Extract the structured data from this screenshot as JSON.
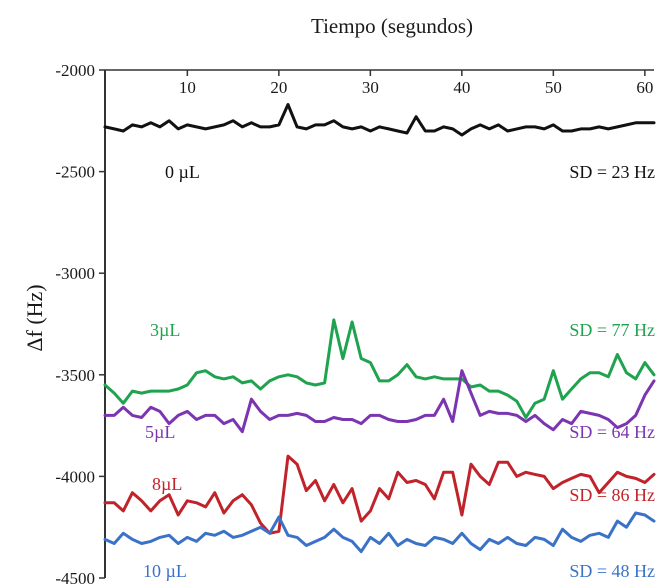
{
  "chart_data": {
    "type": "line",
    "title": "",
    "xlabel": "Tiempo (segundos)",
    "ylabel": "Δf  (Hz)",
    "xlim": [
      1,
      61
    ],
    "ylim": [
      -4500,
      -2000
    ],
    "x_ticks": [
      10,
      20,
      30,
      40,
      50,
      60
    ],
    "y_ticks": [
      -2000,
      -2500,
      -3000,
      -3500,
      -4000,
      -4500
    ],
    "x_tick_labels": [
      "10",
      "20",
      "30",
      "40",
      "50",
      "60"
    ],
    "y_tick_labels": [
      "-2000",
      "-2500",
      "-3000",
      "-3500",
      "-4000",
      "-4500"
    ],
    "grid": false,
    "x_axis_position": "top",
    "x": [
      1,
      2,
      3,
      4,
      5,
      6,
      7,
      8,
      9,
      10,
      11,
      12,
      13,
      14,
      15,
      16,
      17,
      18,
      19,
      20,
      21,
      22,
      23,
      24,
      25,
      26,
      27,
      28,
      29,
      30,
      31,
      32,
      33,
      34,
      35,
      36,
      37,
      38,
      39,
      40,
      41,
      42,
      43,
      44,
      45,
      46,
      47,
      48,
      49,
      50,
      51,
      52,
      53,
      54,
      55,
      56,
      57,
      58,
      59,
      60,
      61
    ],
    "series": [
      {
        "name": "0 µL",
        "color": "#111111",
        "label": "0 µL",
        "sd_label": "SD = 23 Hz",
        "values": [
          -2280,
          -2290,
          -2300,
          -2270,
          -2280,
          -2260,
          -2280,
          -2250,
          -2290,
          -2270,
          -2280,
          -2290,
          -2280,
          -2270,
          -2250,
          -2280,
          -2260,
          -2280,
          -2280,
          -2270,
          -2170,
          -2280,
          -2290,
          -2270,
          -2270,
          -2250,
          -2280,
          -2290,
          -2280,
          -2300,
          -2280,
          -2290,
          -2300,
          -2310,
          -2230,
          -2300,
          -2300,
          -2280,
          -2290,
          -2320,
          -2290,
          -2270,
          -2290,
          -2270,
          -2300,
          -2290,
          -2280,
          -2280,
          -2290,
          -2270,
          -2300,
          -2300,
          -2290,
          -2290,
          -2280,
          -2290,
          -2280,
          -2270,
          -2260,
          -2260,
          -2260
        ]
      },
      {
        "name": "3µL",
        "color": "#1fa34e",
        "label": "3µL",
        "sd_label": "SD = 77 Hz",
        "values": [
          -3550,
          -3590,
          -3640,
          -3580,
          -3590,
          -3580,
          -3580,
          -3580,
          -3570,
          -3550,
          -3490,
          -3480,
          -3510,
          -3520,
          -3510,
          -3540,
          -3530,
          -3570,
          -3530,
          -3510,
          -3500,
          -3510,
          -3540,
          -3550,
          -3540,
          -3230,
          -3420,
          -3240,
          -3420,
          -3440,
          -3530,
          -3530,
          -3500,
          -3450,
          -3510,
          -3520,
          -3510,
          -3520,
          -3520,
          -3520,
          -3560,
          -3550,
          -3580,
          -3580,
          -3600,
          -3630,
          -3710,
          -3640,
          -3620,
          -3480,
          -3620,
          -3570,
          -3520,
          -3490,
          -3490,
          -3510,
          -3400,
          -3490,
          -3520,
          -3440,
          -3500
        ]
      },
      {
        "name": "5µL",
        "color": "#7b35b0",
        "label": "5µL",
        "sd_label": "SD = 64 Hz",
        "values": [
          -3700,
          -3700,
          -3660,
          -3700,
          -3710,
          -3660,
          -3680,
          -3740,
          -3700,
          -3680,
          -3720,
          -3700,
          -3700,
          -3740,
          -3720,
          -3780,
          -3620,
          -3680,
          -3720,
          -3700,
          -3700,
          -3690,
          -3700,
          -3730,
          -3730,
          -3710,
          -3720,
          -3720,
          -3740,
          -3700,
          -3700,
          -3720,
          -3730,
          -3730,
          -3720,
          -3700,
          -3700,
          -3620,
          -3730,
          -3480,
          -3590,
          -3700,
          -3680,
          -3690,
          -3690,
          -3700,
          -3730,
          -3700,
          -3740,
          -3770,
          -3720,
          -3740,
          -3680,
          -3690,
          -3700,
          -3720,
          -3760,
          -3740,
          -3700,
          -3600,
          -3530
        ]
      },
      {
        "name": "8µL",
        "color": "#c0232a",
        "label": "8µL",
        "sd_label": "SD = 86 Hz",
        "values": [
          -4130,
          -4130,
          -4170,
          -4080,
          -4120,
          -4170,
          -4120,
          -4090,
          -4190,
          -4120,
          -4130,
          -4150,
          -4080,
          -4180,
          -4120,
          -4090,
          -4140,
          -4230,
          -4280,
          -4270,
          -3900,
          -3940,
          -4070,
          -4020,
          -4120,
          -4040,
          -4130,
          -4060,
          -4220,
          -4170,
          -4060,
          -4110,
          -3980,
          -4030,
          -4020,
          -4040,
          -4110,
          -3980,
          -3980,
          -4190,
          -3940,
          -4000,
          -4040,
          -3930,
          -3930,
          -4000,
          -3980,
          -3990,
          -4000,
          -4060,
          -4030,
          -4010,
          -3990,
          -4000,
          -4080,
          -4030,
          -3980,
          -4000,
          -4010,
          -4030,
          -3990
        ]
      },
      {
        "name": "10 µL",
        "color": "#3a72c8",
        "label": "10 µL",
        "sd_label": "SD = 48 Hz",
        "values": [
          -4310,
          -4330,
          -4280,
          -4310,
          -4330,
          -4320,
          -4300,
          -4290,
          -4330,
          -4300,
          -4320,
          -4280,
          -4290,
          -4270,
          -4300,
          -4290,
          -4270,
          -4250,
          -4280,
          -4200,
          -4290,
          -4300,
          -4340,
          -4320,
          -4300,
          -4260,
          -4300,
          -4320,
          -4370,
          -4300,
          -4330,
          -4280,
          -4340,
          -4310,
          -4330,
          -4340,
          -4300,
          -4310,
          -4330,
          -4280,
          -4330,
          -4360,
          -4310,
          -4330,
          -4300,
          -4330,
          -4340,
          -4300,
          -4310,
          -4340,
          -4260,
          -4300,
          -4320,
          -4290,
          -4280,
          -4300,
          -4220,
          -4250,
          -4180,
          -4190,
          -4220
        ]
      }
    ]
  }
}
